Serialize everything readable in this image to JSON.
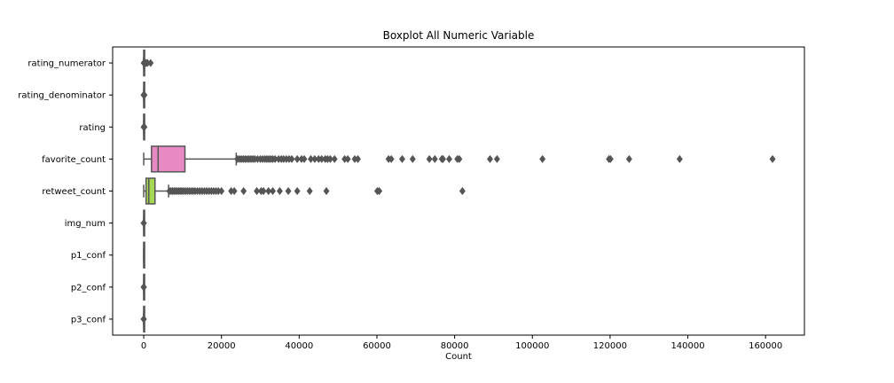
{
  "chart_data": {
    "type": "boxplot",
    "title": "Boxplot All Numeric Variable",
    "xlabel": "Count",
    "ylabel": "",
    "xlim": [
      -8000,
      170000
    ],
    "x_ticks": [
      0,
      20000,
      40000,
      60000,
      80000,
      100000,
      120000,
      140000,
      160000
    ],
    "x_tick_labels": [
      "0",
      "20000",
      "40000",
      "60000",
      "80000",
      "100000",
      "120000",
      "140000",
      "160000"
    ],
    "grid": false,
    "orientation": "horizontal",
    "categories": [
      "rating_numerator",
      "rating_denominator",
      "rating",
      "favorite_count",
      "retweet_count",
      "img_num",
      "p1_conf",
      "p2_conf",
      "p3_conf"
    ],
    "series": [
      {
        "category": "rating_numerator",
        "color": "#66c2a5",
        "min": 0,
        "q1": 10,
        "median": 11,
        "q3": 12,
        "max": 14,
        "outliers": [
          0,
          60,
          120,
          200,
          420,
          666,
          960,
          1776
        ]
      },
      {
        "category": "rating_denominator",
        "color": "#fc8d62",
        "min": 10,
        "q1": 10,
        "median": 10,
        "q3": 10,
        "max": 10,
        "outliers": [
          0,
          2,
          7,
          11,
          15,
          20,
          40,
          50,
          70,
          80,
          90,
          110,
          120,
          130,
          150,
          170
        ]
      },
      {
        "category": "rating",
        "color": "#8da0cb",
        "min": 0.6,
        "q1": 1.0,
        "median": 1.1,
        "q3": 1.2,
        "max": 1.4,
        "outliers": [
          0,
          3.4,
          17.76,
          42,
          66.6,
          177.6
        ]
      },
      {
        "category": "favorite_count",
        "color": "#e78ac3",
        "min": 0,
        "q1": 2000,
        "median": 3700,
        "q3": 10600,
        "max": 23800,
        "outliers": [
          24100,
          24600,
          25100,
          25600,
          26100,
          26600,
          27100,
          27600,
          28100,
          28600,
          29300,
          30000,
          30600,
          31200,
          31700,
          32200,
          32700,
          33200,
          33800,
          34700,
          35400,
          36000,
          36700,
          37400,
          38100,
          39500,
          40600,
          41300,
          43000,
          44000,
          45000,
          45800,
          46700,
          47300,
          48000,
          49100,
          51700,
          52500,
          54300,
          55100,
          63000,
          63700,
          66500,
          69200,
          73500,
          74900,
          76700,
          77000,
          78600,
          80700,
          81200,
          89100,
          90900,
          102600,
          119700,
          120100,
          124900,
          137900,
          161800
        ]
      },
      {
        "category": "retweet_count",
        "color": "#a6d854",
        "min": 0,
        "q1": 600,
        "median": 1300,
        "q3": 2900,
        "max": 6400,
        "outliers": [
          6600,
          7000,
          7400,
          7800,
          8200,
          8600,
          9000,
          9400,
          9800,
          10200,
          10700,
          11200,
          11700,
          12200,
          12700,
          13200,
          13800,
          14400,
          15000,
          15600,
          16200,
          16800,
          17400,
          18000,
          18600,
          19200,
          20000,
          22500,
          23300,
          25700,
          29100,
          30200,
          30800,
          32100,
          33200,
          35000,
          37200,
          39500,
          42700,
          47000,
          60100,
          60600,
          82000
        ]
      },
      {
        "category": "img_num",
        "color": "#ffd92f",
        "min": 1,
        "q1": 1,
        "median": 1,
        "q3": 1,
        "max": 1,
        "outliers": [
          2,
          3,
          4
        ]
      },
      {
        "category": "p1_conf",
        "color": "#e5c494",
        "min": 0.04,
        "q1": 0.36,
        "median": 0.59,
        "q3": 0.84,
        "max": 1.0,
        "outliers": []
      },
      {
        "category": "p2_conf",
        "color": "#b3b3b3",
        "min": 0.0,
        "q1": 0.05,
        "median": 0.12,
        "q3": 0.19,
        "max": 0.4,
        "outliers": [
          0.41,
          0.44,
          0.46,
          0.48
        ]
      },
      {
        "category": "p3_conf",
        "color": "#66c2a5",
        "min": 0.0,
        "q1": 0.02,
        "median": 0.05,
        "q3": 0.09,
        "max": 0.19,
        "outliers": [
          0.2,
          0.22,
          0.25,
          0.27
        ]
      }
    ]
  }
}
